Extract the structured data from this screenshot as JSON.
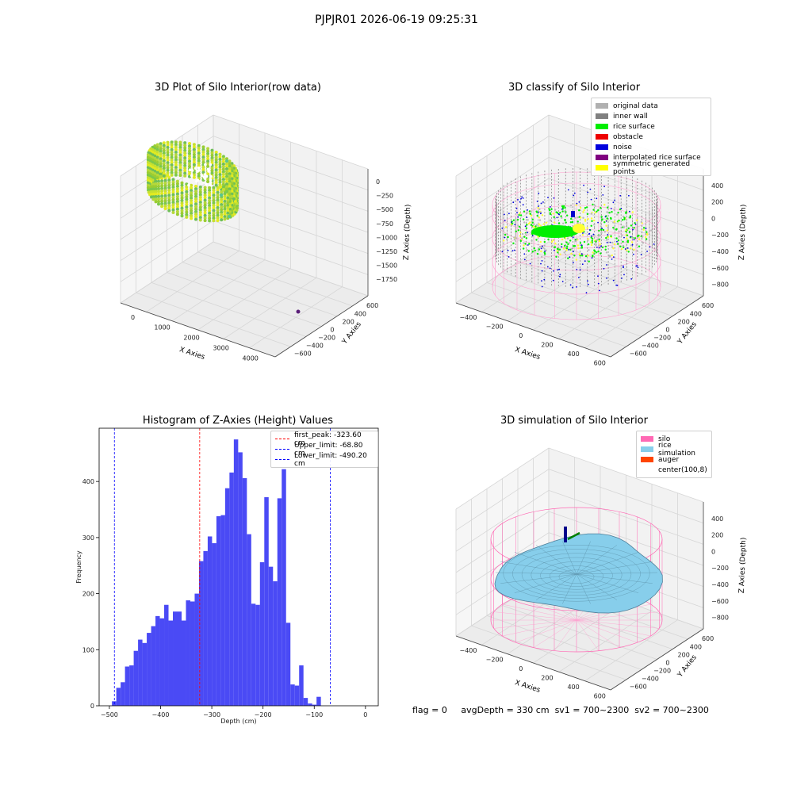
{
  "suptitle": "PJPJR01 2026-06-19 09:25:31",
  "panels": {
    "raw": {
      "title": "3D Plot of Silo Interior(row data)",
      "xlabel": "X Axies",
      "ylabel": "Y Axies",
      "zlabel": "Z Axies (Depth)",
      "xticks": [
        "0",
        "1000",
        "2000",
        "3000",
        "4000"
      ],
      "yticks": [
        "600",
        "400",
        "200",
        "0",
        "−200",
        "−400",
        "−600"
      ],
      "zticks": [
        "0",
        "−250",
        "−500",
        "−750",
        "−1000",
        "−1250",
        "−1500",
        "−1750"
      ]
    },
    "classify": {
      "title": "3D classify of Silo Interior",
      "xlabel": "X Axies",
      "ylabel": "Y Axies",
      "zlabel": "Z Axies (Depth)",
      "xticks": [
        "−400",
        "−200",
        "0",
        "200",
        "400",
        "600"
      ],
      "yticks": [
        "600",
        "400",
        "200",
        "0",
        "−200",
        "−400",
        "−600"
      ],
      "zticks": [
        "400",
        "200",
        "0",
        "−200",
        "−400",
        "−600",
        "−800"
      ],
      "legend": [
        {
          "label": "original data",
          "color": "#b0b0b0"
        },
        {
          "label": "inner wall",
          "color": "#808080"
        },
        {
          "label": "rice surface",
          "color": "#00ee00"
        },
        {
          "label": "obstacle",
          "color": "#ee0000"
        },
        {
          "label": "noise",
          "color": "#0000dd"
        },
        {
          "label": "interpolated rice surface",
          "color": "#800080"
        },
        {
          "label": "symmetric generated points",
          "color": "#ffff00"
        }
      ]
    },
    "histogram": {
      "title": "Histogram of Z-Axies (Height) Values",
      "legend": [
        {
          "label": "first_peak: -323.60 cm",
          "color": "#ff0000"
        },
        {
          "label": "Upper_limit: -68.80 cm",
          "color": "#0000ff"
        },
        {
          "label": "Lower_limit: -490.20 cm",
          "color": "#0000ff"
        }
      ]
    },
    "simulation": {
      "title": "3D simulation of Silo Interior",
      "xlabel": "X Axies",
      "ylabel": "Y Axies",
      "zlabel": "Z Axies (Depth)",
      "xticks": [
        "−400",
        "−200",
        "0",
        "200",
        "400",
        "600"
      ],
      "yticks": [
        "600",
        "400",
        "200",
        "0",
        "−200",
        "−400",
        "−600"
      ],
      "zticks": [
        "400",
        "200",
        "0",
        "−200",
        "−400",
        "−600",
        "−800"
      ],
      "legend": [
        {
          "label": "silo",
          "color": "#ff69b4"
        },
        {
          "label": "rice simulation",
          "color": "#87ceeb"
        },
        {
          "label": "auger",
          "color": "#ff4500"
        },
        {
          "label": "center(100,8)",
          "color": ""
        }
      ]
    }
  },
  "status": {
    "flag": "flag = 0",
    "avg": "avgDepth = 330 cm",
    "sv1": "sv1 = 700~2300",
    "sv2": "sv2 = 700~2300"
  },
  "chart_data": {
    "type": "bar",
    "title": "Histogram of Z-Axies (Height) Values",
    "xlabel": "Depth (cm)",
    "ylabel": "Frequency",
    "xlim": [
      -520,
      25
    ],
    "ylim": [
      0,
      495
    ],
    "xticks": [
      -500,
      -400,
      -300,
      -200,
      -100,
      0
    ],
    "yticks": [
      0,
      100,
      200,
      300,
      400
    ],
    "bin_start": -495,
    "bin_width": 8.5,
    "bar_color": "#4a4af5",
    "values": [
      8,
      32,
      42,
      70,
      72,
      98,
      118,
      112,
      130,
      142,
      160,
      156,
      180,
      152,
      168,
      168,
      152,
      188,
      186,
      200,
      258,
      276,
      302,
      290,
      338,
      340,
      388,
      416,
      475,
      452,
      406,
      306,
      182,
      180,
      256,
      372,
      248,
      222,
      370,
      422,
      148,
      38,
      36,
      72,
      14,
      4,
      2,
      16
    ],
    "lines": [
      {
        "name": "first_peak: -323.60 cm",
        "x": -323.6,
        "color": "#ff0000"
      },
      {
        "name": "Upper_limit: -68.80 cm",
        "x": -68.8,
        "color": "#0000ff"
      },
      {
        "name": "Lower_limit: -490.20 cm",
        "x": -490.2,
        "color": "#0000ff"
      }
    ]
  }
}
